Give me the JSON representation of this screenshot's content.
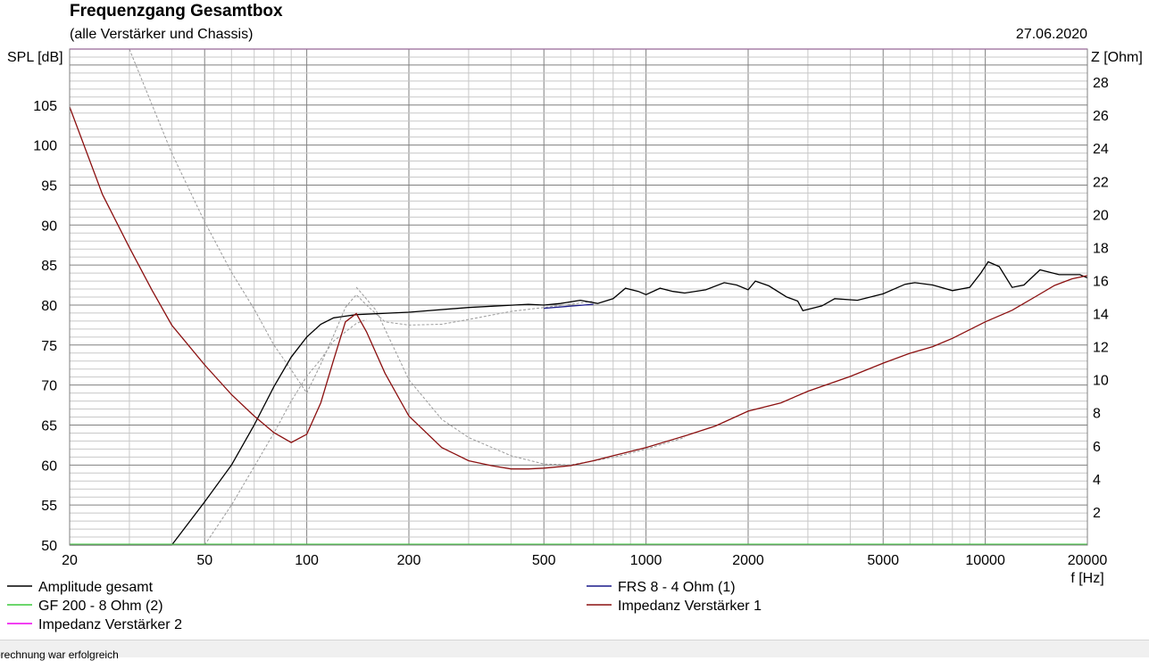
{
  "chart_data": {
    "type": "line",
    "title": "Frequenzgang Gesamtbox",
    "subtitle": "(alle Verstärker und Chassis)",
    "date": "27.06.2020",
    "ylabel_left": "SPL [dB]",
    "ylabel_right": "Z [Ohm]",
    "xlabel": "f [Hz]",
    "x_scale": "log",
    "xlim": [
      20,
      20000
    ],
    "ylim_left": [
      50,
      112
    ],
    "ylim_right": [
      0,
      30
    ],
    "grid": true,
    "legend_position": "bottom",
    "x_ticks": [
      {
        "v": 20,
        "label": "20"
      },
      {
        "v": 50,
        "label": "50"
      },
      {
        "v": 100,
        "label": "100"
      },
      {
        "v": 200,
        "label": "200"
      },
      {
        "v": 500,
        "label": "500"
      },
      {
        "v": 1000,
        "label": "1000"
      },
      {
        "v": 2000,
        "label": "2000"
      },
      {
        "v": 5000,
        "label": "5000"
      },
      {
        "v": 10000,
        "label": "10000"
      },
      {
        "v": 20000,
        "label": "20000"
      }
    ],
    "y_left_ticks": [
      {
        "v": 50,
        "label": "50"
      },
      {
        "v": 55,
        "label": "55"
      },
      {
        "v": 60,
        "label": "60"
      },
      {
        "v": 65,
        "label": "65"
      },
      {
        "v": 70,
        "label": "70"
      },
      {
        "v": 75,
        "label": "75"
      },
      {
        "v": 80,
        "label": "80"
      },
      {
        "v": 85,
        "label": "85"
      },
      {
        "v": 90,
        "label": "90"
      },
      {
        "v": 95,
        "label": "95"
      },
      {
        "v": 100,
        "label": "100"
      },
      {
        "v": 105,
        "label": "105"
      }
    ],
    "y_right_ticks": [
      {
        "v": 2,
        "label": "2"
      },
      {
        "v": 4,
        "label": "4"
      },
      {
        "v": 6,
        "label": "6"
      },
      {
        "v": 8,
        "label": "8"
      },
      {
        "v": 10,
        "label": "10"
      },
      {
        "v": 12,
        "label": "12"
      },
      {
        "v": 14,
        "label": "14"
      },
      {
        "v": 16,
        "label": "16"
      },
      {
        "v": 18,
        "label": "18"
      },
      {
        "v": 20,
        "label": "20"
      },
      {
        "v": 22,
        "label": "22"
      },
      {
        "v": 24,
        "label": "24"
      },
      {
        "v": 26,
        "label": "26"
      },
      {
        "v": 28,
        "label": "28"
      }
    ],
    "series": [
      {
        "name": "Amplitude gesamt",
        "axis": "left",
        "color": "#000000",
        "dash": "solid",
        "points": [
          [
            20,
            50
          ],
          [
            40,
            50
          ],
          [
            50,
            55.4
          ],
          [
            60,
            60
          ],
          [
            70,
            65
          ],
          [
            80,
            69.8
          ],
          [
            90,
            73.5
          ],
          [
            100,
            76
          ],
          [
            110,
            77.6
          ],
          [
            120,
            78.4
          ],
          [
            140,
            78.8
          ],
          [
            200,
            79.1
          ],
          [
            300,
            79.7
          ],
          [
            450,
            80.1
          ],
          [
            500,
            80
          ],
          [
            560,
            80.2
          ],
          [
            640,
            80.6
          ],
          [
            720,
            80.2
          ],
          [
            800,
            80.8
          ],
          [
            870,
            82.1
          ],
          [
            950,
            81.7
          ],
          [
            1000,
            81.3
          ],
          [
            1100,
            82.1
          ],
          [
            1200,
            81.7
          ],
          [
            1300,
            81.5
          ],
          [
            1500,
            81.9
          ],
          [
            1700,
            82.8
          ],
          [
            1850,
            82.5
          ],
          [
            2000,
            81.9
          ],
          [
            2100,
            83
          ],
          [
            2300,
            82.4
          ],
          [
            2600,
            81
          ],
          [
            2800,
            80.5
          ],
          [
            2900,
            79.3
          ],
          [
            3300,
            79.9
          ],
          [
            3600,
            80.8
          ],
          [
            4200,
            80.6
          ],
          [
            5000,
            81.4
          ],
          [
            5800,
            82.6
          ],
          [
            6200,
            82.8
          ],
          [
            7000,
            82.5
          ],
          [
            8000,
            81.8
          ],
          [
            9000,
            82.2
          ],
          [
            9700,
            84
          ],
          [
            10200,
            85.4
          ],
          [
            11000,
            84.8
          ],
          [
            12000,
            82.2
          ],
          [
            13000,
            82.5
          ],
          [
            14500,
            84.4
          ],
          [
            16500,
            83.8
          ],
          [
            19000,
            83.8
          ],
          [
            20000,
            83.4
          ]
        ]
      },
      {
        "name": "GF 200 - 8 Ohm (2)",
        "axis": "right",
        "color": "#3cc83c",
        "dash": "solid",
        "points": [
          [
            20,
            0.05
          ],
          [
            20000,
            0.05
          ]
        ]
      },
      {
        "name": "Impedanz Verstärker 2",
        "axis": "right",
        "color": "#ee00ee",
        "dash": "solid",
        "points": [
          [
            20,
            31.2
          ],
          [
            20000,
            31.2
          ]
        ]
      },
      {
        "name": "FRS 8 - 4 Ohm (1)",
        "axis": "left",
        "color": "#1a1a8a",
        "dash": "solid",
        "points": [
          [
            500,
            79.6
          ],
          [
            700,
            80.1
          ]
        ]
      },
      {
        "name": "Impedanz Verstärker 1",
        "axis": "right",
        "color": "#8b1010",
        "dash": "solid",
        "points": [
          [
            20,
            26.5
          ],
          [
            25,
            21.2
          ],
          [
            30,
            18
          ],
          [
            35,
            15.4
          ],
          [
            40,
            13.3
          ],
          [
            50,
            10.9
          ],
          [
            60,
            9.1
          ],
          [
            70,
            7.8
          ],
          [
            80,
            6.8
          ],
          [
            90,
            6.2
          ],
          [
            100,
            6.7
          ],
          [
            110,
            8.6
          ],
          [
            120,
            11.2
          ],
          [
            130,
            13.5
          ],
          [
            140,
            14
          ],
          [
            150,
            12.9
          ],
          [
            170,
            10.4
          ],
          [
            200,
            7.8
          ],
          [
            250,
            5.9
          ],
          [
            300,
            5.1
          ],
          [
            350,
            4.8
          ],
          [
            400,
            4.6
          ],
          [
            450,
            4.6
          ],
          [
            500,
            4.65
          ],
          [
            600,
            4.8
          ],
          [
            700,
            5.1
          ],
          [
            800,
            5.4
          ],
          [
            1000,
            5.9
          ],
          [
            1300,
            6.6
          ],
          [
            1600,
            7.2
          ],
          [
            2000,
            8.1
          ],
          [
            2500,
            8.6
          ],
          [
            3000,
            9.3
          ],
          [
            4000,
            10.2
          ],
          [
            5000,
            11
          ],
          [
            6000,
            11.6
          ],
          [
            7000,
            12
          ],
          [
            8000,
            12.5
          ],
          [
            10000,
            13.5
          ],
          [
            12000,
            14.2
          ],
          [
            14000,
            15
          ],
          [
            16000,
            15.7
          ],
          [
            18000,
            16.1
          ],
          [
            20000,
            16.3
          ]
        ]
      }
    ],
    "dashed_reference": {
      "name": "",
      "axis": "left",
      "color": "#9a9a9a",
      "points": [
        [
          30,
          112
        ],
        [
          35,
          105
        ],
        [
          40,
          99
        ],
        [
          50,
          90.4
        ],
        [
          60,
          84.1
        ],
        [
          70,
          79.5
        ],
        [
          80,
          75
        ],
        [
          90,
          71.9
        ],
        [
          100,
          69
        ],
        [
          110,
          72.6
        ],
        [
          120,
          76.2
        ],
        [
          130,
          79.7
        ],
        [
          140,
          81.3
        ],
        [
          150,
          80
        ],
        [
          170,
          77.9
        ],
        [
          200,
          77.5
        ],
        [
          250,
          77.6
        ],
        [
          300,
          78.2
        ],
        [
          400,
          79.2
        ],
        [
          500,
          79.7
        ],
        [
          600,
          80.1
        ],
        [
          700,
          80.5
        ]
      ],
      "points_low": [
        [
          50,
          50
        ],
        [
          60,
          55
        ],
        [
          70,
          59.8
        ],
        [
          80,
          64
        ],
        [
          90,
          68
        ],
        [
          100,
          71.1
        ],
        [
          110,
          73.2
        ],
        [
          120,
          75.5
        ],
        [
          140,
          77.7
        ],
        [
          150,
          78.2
        ]
      ],
      "points_imp": [
        [
          140,
          15.6
        ],
        [
          160,
          14.2
        ],
        [
          200,
          10
        ],
        [
          250,
          7.6
        ],
        [
          300,
          6.5
        ],
        [
          400,
          5.4
        ],
        [
          500,
          4.9
        ],
        [
          600,
          4.85
        ],
        [
          800,
          5.3
        ],
        [
          1000,
          5.8
        ],
        [
          1300,
          6.5
        ]
      ]
    }
  },
  "legend": {
    "items": [
      {
        "label": "Amplitude gesamt",
        "color": "#000000"
      },
      {
        "label": "FRS 8 - 4 Ohm (1)",
        "color": "#1a1a8a"
      },
      {
        "label": "GF 200 - 8 Ohm (2)",
        "color": "#3cc83c"
      },
      {
        "label": "Impedanz Verstärker 1",
        "color": "#8b1010"
      },
      {
        "label": "Impedanz Verstärker 2",
        "color": "#ee00ee"
      }
    ]
  },
  "status": {
    "text": "erechnung war erfolgreich"
  },
  "colors": {
    "grid_major": "#808080",
    "grid_minor": "#c8c8c8",
    "frame": "#808080"
  }
}
